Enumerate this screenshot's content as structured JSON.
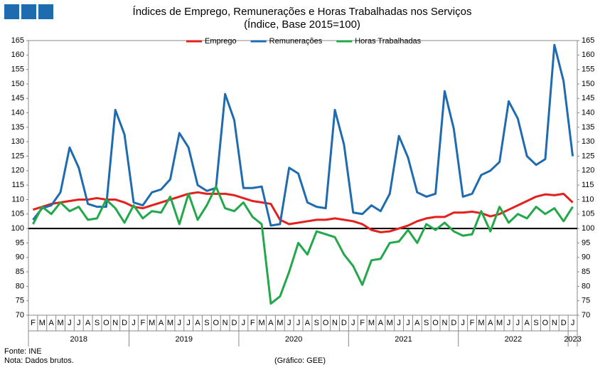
{
  "chart_data": {
    "type": "line",
    "title": "Índices de Emprego, Remunerações e Horas Trabalhadas nos Serviços",
    "subtitle": "(Índice, Base 2015=100)",
    "categories": [
      "F",
      "M",
      "A",
      "M",
      "J",
      "J",
      "A",
      "S",
      "O",
      "N",
      "D",
      "J",
      "F",
      "M",
      "A",
      "M",
      "J",
      "J",
      "A",
      "S",
      "O",
      "N",
      "D",
      "J",
      "F",
      "M",
      "A",
      "M",
      "J",
      "J",
      "A",
      "S",
      "O",
      "N",
      "D",
      "J",
      "F",
      "M",
      "A",
      "M",
      "J",
      "J",
      "A",
      "S",
      "O",
      "N",
      "D",
      "J",
      "F",
      "M",
      "A",
      "M",
      "J",
      "J",
      "A",
      "S",
      "O",
      "N",
      "D",
      "J"
    ],
    "years": [
      "2018",
      "2019",
      "2020",
      "2021",
      "2022",
      "2023"
    ],
    "series": [
      {
        "name": "Emprego",
        "color": "#e3201b",
        "values": [
          106.5,
          107.5,
          108.5,
          109,
          109.5,
          110,
          110,
          110.5,
          110,
          110,
          109,
          107.5,
          107,
          108,
          109,
          110,
          111,
          112,
          112.5,
          112,
          112,
          112,
          111.5,
          110.5,
          109.5,
          109,
          108.5,
          103,
          101.5,
          102,
          102.5,
          103,
          103,
          103.5,
          103,
          102.5,
          101.5,
          99.5,
          98.7,
          99,
          100,
          101,
          102.5,
          103.5,
          104,
          104,
          105.5,
          105.5,
          105.8,
          105.3,
          104.2,
          105,
          106.5,
          108,
          109.5,
          111,
          111.8,
          111.5,
          112,
          109
        ]
      },
      {
        "name": "Remunerações",
        "color": "#1f6bb0",
        "values": [
          103,
          107,
          108,
          112.5,
          128,
          121,
          108.5,
          107.5,
          107.5,
          141,
          132.5,
          109,
          108,
          112.5,
          113.5,
          117,
          133,
          128,
          115,
          113,
          114,
          146.5,
          137.5,
          114,
          114,
          114.5,
          101,
          101.5,
          121,
          119,
          109,
          107.5,
          107,
          141,
          129,
          105.5,
          105,
          108,
          106,
          112,
          132,
          124.5,
          112.5,
          111,
          112,
          147.5,
          134.5,
          111,
          112,
          118.5,
          120,
          123,
          144,
          138,
          125,
          122,
          124,
          163.5,
          151,
          125
        ]
      },
      {
        "name": "Horas Trabalhadas",
        "color": "#22a84a",
        "values": [
          101.5,
          107.5,
          105,
          109,
          106,
          107.5,
          103,
          103.5,
          110,
          107,
          102,
          108,
          103.5,
          106,
          105.5,
          111,
          101.5,
          112,
          103,
          108,
          114.5,
          107,
          106,
          109,
          104,
          101.5,
          74,
          76.5,
          85,
          95,
          91,
          99,
          98,
          97,
          91,
          87,
          80.5,
          89,
          89.5,
          95,
          95.5,
          99.5,
          95,
          101.5,
          99.5,
          102,
          99,
          97.5,
          98,
          106,
          99,
          107.5,
          102,
          105,
          103.5,
          107.5,
          105,
          107,
          102.5,
          107.5
        ]
      }
    ],
    "ylim": [
      70,
      165
    ],
    "yticks": [
      70,
      75,
      80,
      85,
      90,
      95,
      100,
      105,
      110,
      115,
      120,
      125,
      130,
      135,
      140,
      145,
      150,
      155,
      160,
      165
    ],
    "y2lim": [
      70,
      165
    ],
    "y2ticks": [
      70,
      75,
      80,
      85,
      90,
      95,
      100,
      105,
      110,
      115,
      120,
      125,
      130,
      135,
      140,
      145,
      150,
      155,
      160,
      165
    ],
    "reference_line": 100,
    "reference_color": "#000000",
    "legend": "top",
    "source": "Fonte: INE",
    "note": "Nota: Dados brutos.",
    "credit": "(Gráfico: GEE)"
  }
}
